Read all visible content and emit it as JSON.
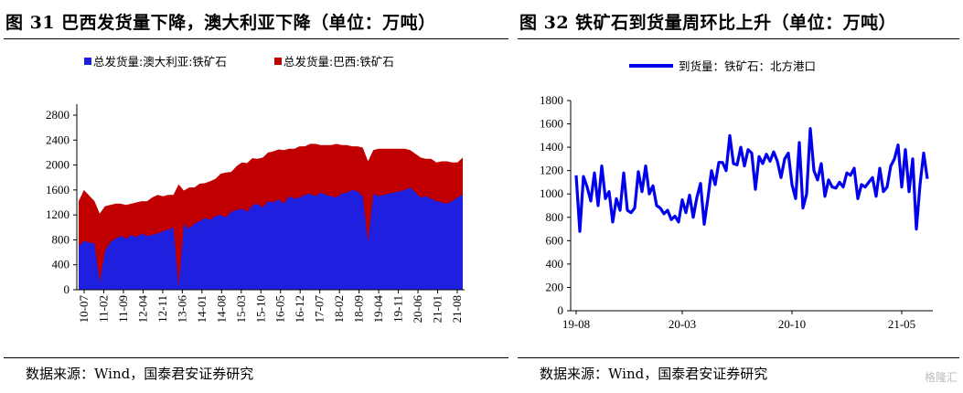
{
  "left_panel": {
    "title": "图 31  巴西发货量下降，澳大利亚下降（单位：万吨）",
    "source": "数据来源：Wind，国泰君安证券研究"
  },
  "right_panel": {
    "title": "图 32  铁矿石到货量周环比上升（单位：万吨）",
    "source": "数据来源：Wind，国泰君安证券研究"
  },
  "watermark": "格隆汇",
  "chart_data": [
    {
      "type": "area",
      "stacked": true,
      "x_ticks": [
        "10-07",
        "11-02",
        "11-09",
        "12-04",
        "12-11",
        "13-06",
        "14-01",
        "14-08",
        "15-03",
        "15-10",
        "16-05",
        "16-12",
        "17-07",
        "18-02",
        "18-09",
        "19-04",
        "19-11",
        "20-06",
        "21-01",
        "21-08"
      ],
      "ylim": [
        0,
        2800
      ],
      "y_ticks": [
        0,
        400,
        800,
        1200,
        1600,
        2000,
        2400,
        2800
      ],
      "legend_position": "top",
      "series": [
        {
          "name": "总发货量:澳大利亚:铁矿石",
          "color": "#1f1fe0",
          "values": [
            700,
            780,
            760,
            740,
            120,
            620,
            760,
            820,
            860,
            820,
            880,
            840,
            900,
            860,
            880,
            900,
            940,
            960,
            1000,
            40,
            1050,
            980,
            1060,
            1100,
            1150,
            1120,
            1180,
            1200,
            1160,
            1250,
            1280,
            1300,
            1250,
            1350,
            1380,
            1320,
            1420,
            1400,
            1450,
            1380,
            1500,
            1460,
            1480,
            1520,
            1540,
            1500,
            1560,
            1520,
            1500,
            1480,
            1540,
            1560,
            1600,
            1580,
            1500,
            760,
            1540,
            1500,
            1520,
            1540,
            1560,
            1580,
            1600,
            1640,
            1560,
            1480,
            1500,
            1460,
            1420,
            1400,
            1380,
            1420,
            1480,
            1520
          ]
        },
        {
          "name": "总发货量:巴西:铁矿石",
          "color": "#c00000",
          "values": [
            720,
            820,
            750,
            680,
            1100,
            720,
            600,
            560,
            520,
            540,
            500,
            560,
            520,
            560,
            600,
            620,
            560,
            560,
            520,
            1650,
            540,
            660,
            580,
            600,
            560,
            620,
            600,
            660,
            720,
            640,
            700,
            740,
            780,
            760,
            720,
            800,
            780,
            820,
            800,
            860,
            760,
            800,
            820,
            780,
            800,
            840,
            760,
            800,
            820,
            860,
            780,
            760,
            700,
            720,
            780,
            1300,
            700,
            760,
            740,
            720,
            700,
            680,
            660,
            600,
            620,
            640,
            600,
            640,
            620,
            660,
            680,
            620,
            560,
            600
          ]
        }
      ]
    },
    {
      "type": "line",
      "x_ticks": [
        "19-08",
        "20-03",
        "20-10",
        "21-05"
      ],
      "ylim": [
        0,
        1800
      ],
      "y_ticks": [
        0,
        200,
        400,
        600,
        800,
        1000,
        1200,
        1400,
        1600,
        1800
      ],
      "legend_position": "top",
      "series": [
        {
          "name": "到货量：铁矿石：北方港口",
          "color": "#0000ee",
          "values": [
            1160,
            680,
            1150,
            1060,
            940,
            1180,
            900,
            1240,
            960,
            1020,
            760,
            960,
            860,
            1180,
            860,
            840,
            880,
            1190,
            1020,
            1240,
            1000,
            1070,
            900,
            880,
            830,
            860,
            780,
            810,
            760,
            950,
            840,
            990,
            800,
            970,
            1090,
            740,
            960,
            1200,
            1080,
            1270,
            1270,
            1200,
            1500,
            1260,
            1250,
            1400,
            1240,
            1380,
            1350,
            1040,
            1320,
            1260,
            1340,
            1280,
            1360,
            1280,
            1140,
            1300,
            1350,
            1080,
            960,
            1440,
            880,
            1000,
            1560,
            1200,
            1120,
            1260,
            980,
            1120,
            1060,
            1050,
            1100,
            1060,
            1180,
            1160,
            1220,
            960,
            1080,
            1060,
            1100,
            1140,
            980,
            1220,
            1020,
            1060,
            1240,
            1300,
            1420,
            1060,
            1380,
            1020,
            1300,
            700,
            1080,
            1350,
            1130
          ]
        }
      ]
    }
  ]
}
